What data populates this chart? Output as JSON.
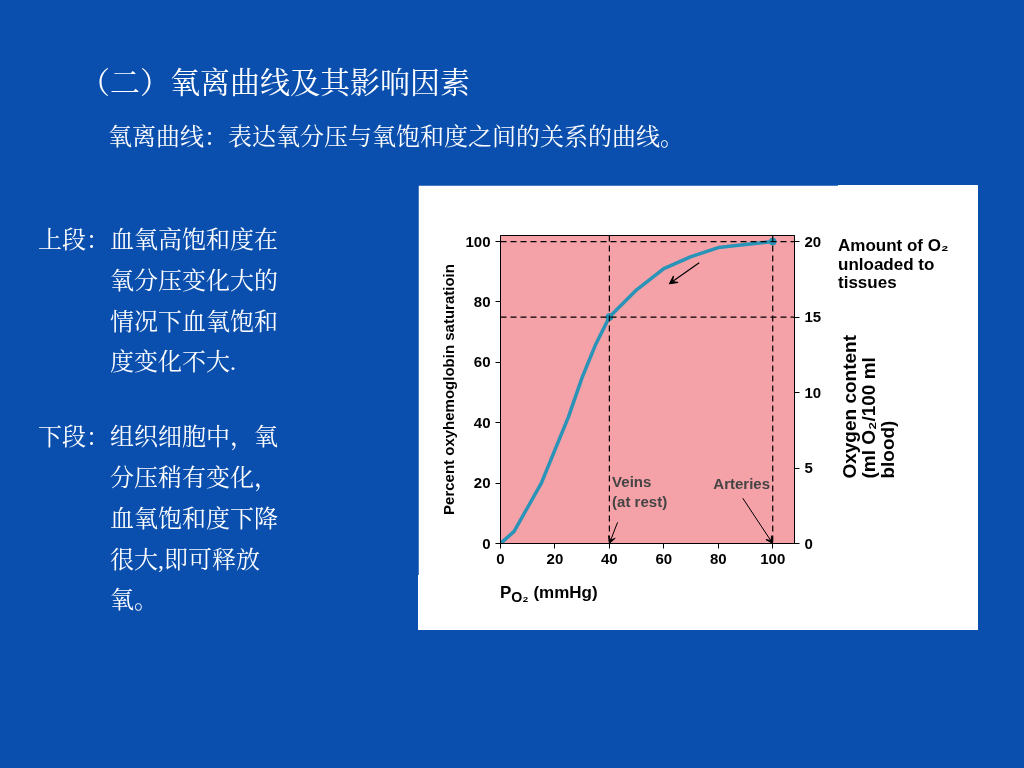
{
  "chart_data": {
    "type": "line",
    "title": "（二）氧离曲线及其影响因素",
    "subtitle": "氧离曲线：表达氧分压与氧饱和度之间的关系的曲线。",
    "xlabel": "P$_{O₂}$ (mmHg)",
    "ylabel": "Percent oxyhemoglobin saturatioin",
    "y2label": "Oxygen content\n(ml O₂/100 ml\nblood)",
    "x": [
      0,
      5,
      10,
      15,
      20,
      25,
      30,
      35,
      40,
      50,
      60,
      70,
      80,
      90,
      100
    ],
    "series": [
      {
        "color": "#2a93b8",
        "values": [
          0,
          4,
          12,
          20,
          31,
          42,
          55,
          66,
          75,
          84,
          91,
          95,
          98,
          99,
          100
        ]
      },
      {
        "type": "scatter",
        "color": "#2a93b8",
        "x": [
          40,
          100
        ],
        "values": [
          75,
          100
        ],
        "marker": "circle"
      }
    ],
    "xlim": [
      0,
      108
    ],
    "ylim": [
      0,
      102
    ],
    "y2lim": [
      0,
      20.4
    ],
    "xticks": [
      0,
      20,
      40,
      60,
      80,
      100
    ],
    "yticks": [
      0,
      20,
      40,
      60,
      80,
      100
    ],
    "y2ticks": [
      0,
      5,
      10,
      15,
      20
    ],
    "ref_lines": [
      {
        "axis": "y",
        "value": 100,
        "line_style": "dashed",
        "color": "#000000"
      },
      {
        "axis": "y",
        "value": 75,
        "line_style": "dashed",
        "color": "#000000"
      },
      {
        "axis": "x",
        "value": 40,
        "line_style": "dashed",
        "color": "#000000"
      },
      {
        "axis": "x",
        "value": 100,
        "line_style": "dashed",
        "color": "#000000"
      }
    ],
    "annotations": [
      {
        "text": "Veins\n(at rest)",
        "x": 40,
        "y": 0
      },
      {
        "text": "Arteries",
        "x": 100,
        "y": 0
      },
      "Amount of O₂\nunloaded to\ntissues",
      "上段：血氧高饱和度在氧分压变化大的情况下血氧饱和度变化不大.",
      "下段：组织细胞中，氧分压稍有变化，血氧饱和度下降很大,即可释放氧。"
    ],
    "grid": false
  }
}
